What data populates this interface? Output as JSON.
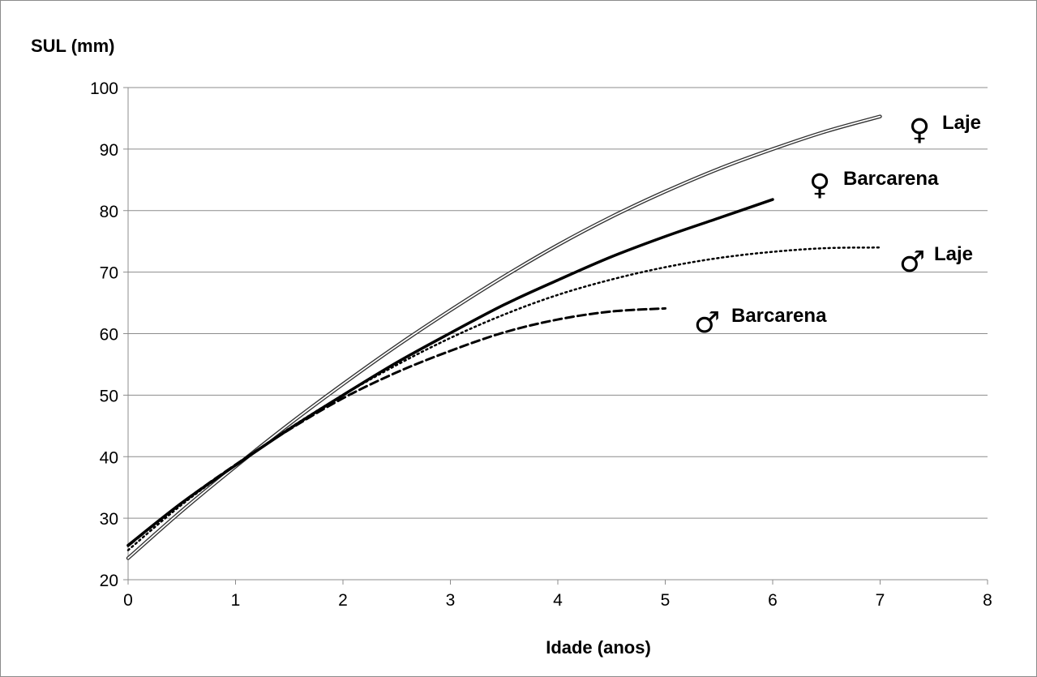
{
  "chart_data": {
    "type": "line",
    "title": "",
    "ylabel": "SUL (mm)",
    "xlabel": "Idade (anos)",
    "xlim": [
      0,
      8
    ],
    "ylim": [
      20,
      100
    ],
    "xticks": [
      "0",
      "1",
      "2",
      "3",
      "4",
      "5",
      "6",
      "7",
      "8"
    ],
    "yticks": [
      "20",
      "30",
      "40",
      "50",
      "60",
      "70",
      "80",
      "90",
      "100"
    ],
    "grid": "horizontal",
    "legend": "inline labels at line ends",
    "series": [
      {
        "name": "Laje",
        "sex_symbol": "♀",
        "style": "double",
        "x": [
          0,
          0.5,
          1,
          1.5,
          2,
          2.5,
          3,
          3.5,
          4,
          4.5,
          5,
          5.5,
          6,
          6.5,
          7
        ],
        "values": [
          23.5,
          31.2,
          38.4,
          45.3,
          51.8,
          58.0,
          63.8,
          69.3,
          74.4,
          79.0,
          83.1,
          86.8,
          90.0,
          92.9,
          95.3
        ]
      },
      {
        "name": "Barcarena",
        "sex_symbol": "♀",
        "style": "solid",
        "x": [
          0,
          0.5,
          1,
          1.5,
          2,
          2.5,
          3,
          3.5,
          4,
          4.5,
          5,
          5.5,
          6
        ],
        "values": [
          25.6,
          32.5,
          38.6,
          44.5,
          50.0,
          55.3,
          60.1,
          64.7,
          68.7,
          72.5,
          75.8,
          78.8,
          81.8
        ]
      },
      {
        "name": "Laje",
        "sex_symbol": "♂",
        "style": "dotted",
        "x": [
          0,
          0.5,
          1,
          1.5,
          2,
          2.5,
          3,
          3.5,
          4,
          4.5,
          5,
          5.5,
          6,
          6.5,
          7
        ],
        "values": [
          24.8,
          32.2,
          38.6,
          44.6,
          50.0,
          54.9,
          59.3,
          63.1,
          66.3,
          68.8,
          70.8,
          72.3,
          73.3,
          73.9,
          74.0
        ]
      },
      {
        "name": "Barcarena",
        "sex_symbol": "♂",
        "style": "dashed",
        "x": [
          0,
          0.5,
          1,
          1.5,
          2,
          2.5,
          3,
          3.5,
          4,
          4.5,
          5
        ],
        "values": [
          25.5,
          32.5,
          38.7,
          44.4,
          49.5,
          53.7,
          57.2,
          60.2,
          62.3,
          63.6,
          64.1
        ]
      }
    ]
  }
}
